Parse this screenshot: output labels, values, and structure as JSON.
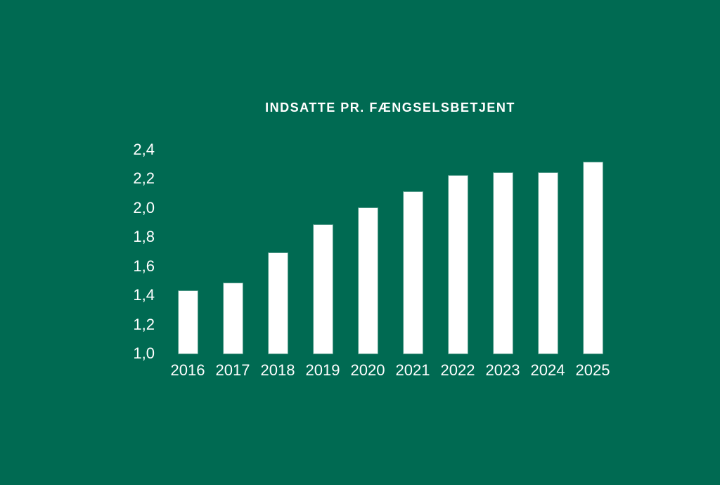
{
  "page": {
    "background_color": "#006A52",
    "text_color": "#FFFFFF"
  },
  "chart_data": {
    "type": "bar",
    "title": "INDSATTE PR. FÆNGSELSBETJENT",
    "categories": [
      "2016",
      "2017",
      "2018",
      "2019",
      "2020",
      "2021",
      "2022",
      "2023",
      "2024",
      "2025"
    ],
    "values": [
      1.43,
      1.48,
      1.69,
      1.88,
      2.0,
      2.11,
      2.22,
      2.24,
      2.24,
      2.31
    ],
    "xlabel": "",
    "ylabel": "",
    "ylim": [
      1.0,
      2.4
    ],
    "y_tick_labels": [
      "2,4",
      "2,2",
      "2,0",
      "1,8",
      "1,6",
      "1,4",
      "1,2",
      "1,0"
    ],
    "y_tick_values": [
      2.4,
      2.2,
      2.0,
      1.8,
      1.6,
      1.4,
      1.2,
      1.0
    ],
    "decimal_separator": ",",
    "grid": false,
    "legend": false,
    "bar_color": "#FFFFFF"
  }
}
